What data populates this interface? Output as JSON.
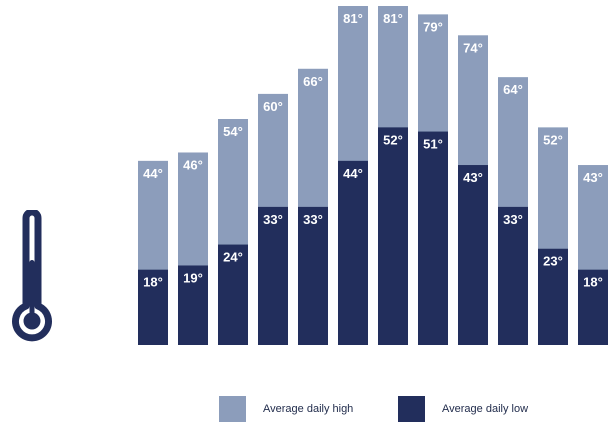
{
  "colors": {
    "high": "#8c9dbb",
    "low": "#222e5c",
    "icon": "#222e5c",
    "label": "#ffffff"
  },
  "icon": {
    "name": "thermometer-icon"
  },
  "legend": {
    "high_label": "Average daily high",
    "low_label": "Average daily low"
  },
  "chart_data": {
    "type": "bar",
    "stacked": false,
    "overlapping": true,
    "title": "",
    "xlabel": "",
    "ylabel": "",
    "ylim": [
      0,
      81
    ],
    "grid": false,
    "legend_position": "bottom",
    "unit_suffix": "°",
    "series": [
      {
        "name": "Average daily high",
        "values": [
          44,
          46,
          54,
          60,
          66,
          81,
          81,
          79,
          74,
          64,
          52,
          43
        ]
      },
      {
        "name": "Average daily low",
        "values": [
          18,
          19,
          24,
          33,
          33,
          44,
          52,
          51,
          43,
          33,
          23,
          18
        ]
      }
    ]
  }
}
